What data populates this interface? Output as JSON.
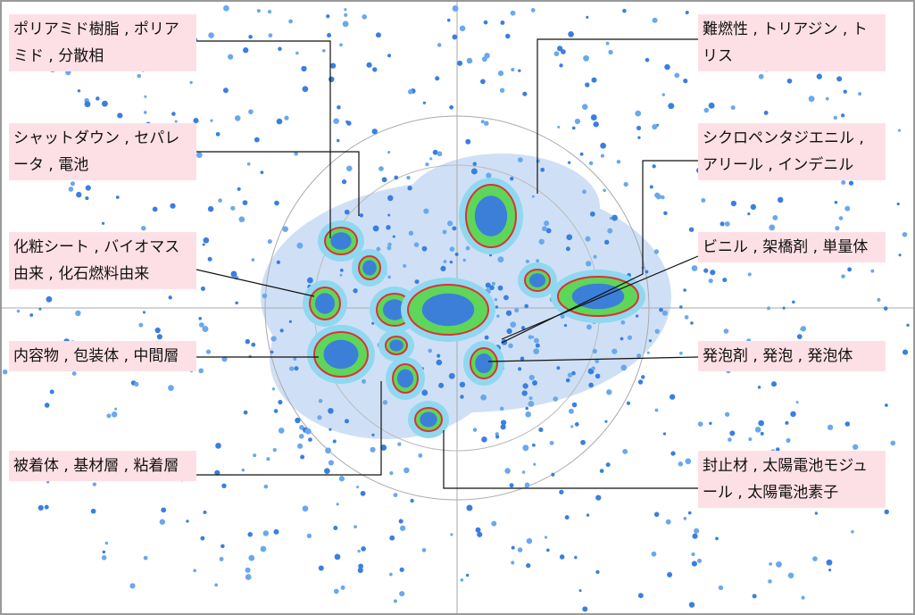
{
  "labels": [
    "ポリアミド樹脂 , ポリアミド , 分散相",
    "シャットダウン , セパレータ , 電池",
    "化粧シート , バイオマス由来 , 化石燃料由来",
    "内容物 , 包装体 , 中間層",
    "被着体 , 基材層 , 粘着層",
    "難燃性 , トリアジン , トリス",
    "シクロペンタジエニル , アリール , インデニル",
    "ビニル , 架橋剤 , 単量体",
    "発泡剤 , 発泡 , 発泡体",
    "封止材 , 太陽電池モジュール , 太陽電池素子"
  ]
}
